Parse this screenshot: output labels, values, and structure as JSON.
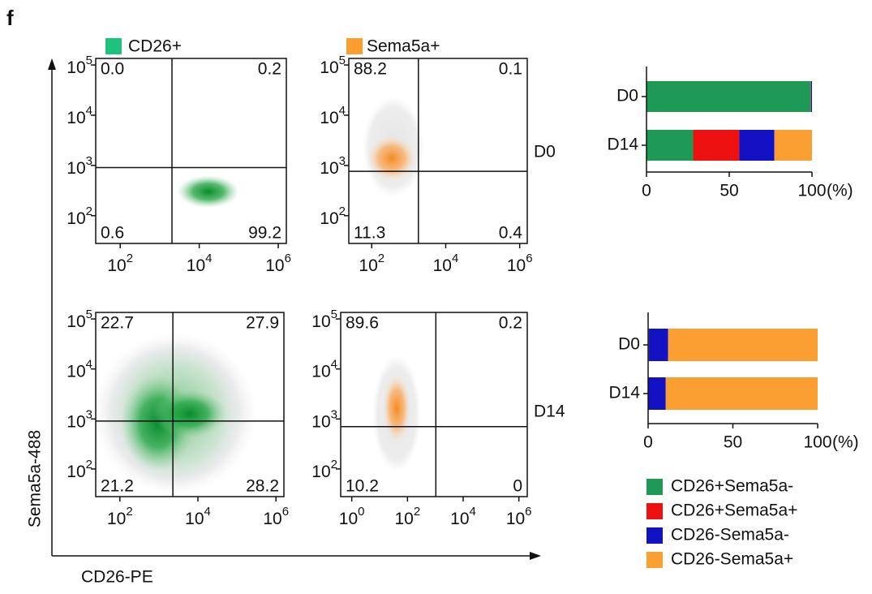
{
  "figure": {
    "panel_label": "f",
    "column_legend": [
      {
        "name": "CD26+",
        "color": "#1fc27a"
      },
      {
        "name": "Sema5a+",
        "color": "#ff9d2e"
      }
    ],
    "row_labels": [
      "D0",
      "D14"
    ],
    "y_axis_label": "Sema5a-488",
    "x_axis_label": "CD26-PE"
  },
  "chart_data": [
    {
      "type": "density",
      "log": true,
      "xlim": [
        24,
        1600000
      ],
      "ylim": [
        28,
        135000
      ],
      "xticks": [
        {
          "value": 100,
          "label": "10",
          "exponent": "2"
        },
        {
          "value": 10000,
          "label": "10",
          "exponent": "4"
        },
        {
          "value": 1000000,
          "label": "10",
          "exponent": "6"
        }
      ],
      "yticks": [
        {
          "value": 100,
          "label": "10",
          "exponent": "2"
        },
        {
          "value": 1000,
          "label": "10",
          "exponent": "3"
        },
        {
          "value": 10000,
          "label": "10",
          "exponent": "4"
        },
        {
          "value": 100000,
          "label": "10",
          "exponent": "5"
        }
      ],
      "values": [
        0,
        0.2,
        0.6,
        99.2
      ],
      "value_labels": [
        "0.0",
        "0.2",
        "0.6",
        "99.2"
      ],
      "color": "#0e9a3c"
    },
    {
      "type": "density",
      "log": true,
      "xlim": [
        24,
        1600000
      ],
      "ylim": [
        28,
        135000
      ],
      "xticks": [
        {
          "value": 100,
          "label": "10",
          "exponent": "2"
        },
        {
          "value": 10000,
          "label": "10",
          "exponent": "4"
        },
        {
          "value": 1000000,
          "label": "10",
          "exponent": "6"
        }
      ],
      "yticks": [
        {
          "value": 100,
          "label": "10",
          "exponent": "2"
        },
        {
          "value": 1000,
          "label": "10",
          "exponent": "3"
        },
        {
          "value": 10000,
          "label": "10",
          "exponent": "4"
        },
        {
          "value": 100000,
          "label": "10",
          "exponent": "5"
        }
      ],
      "values": [
        88.2,
        0.1,
        11.3,
        0.4
      ],
      "value_labels": [
        "88.2",
        "0.1",
        "11.3",
        "0.4"
      ],
      "color": "#f58a1f"
    },
    {
      "type": "density",
      "log": true,
      "xlim": [
        24,
        1600000
      ],
      "ylim": [
        28,
        135000
      ],
      "xticks": [
        {
          "value": 100,
          "label": "10",
          "exponent": "2"
        },
        {
          "value": 10000,
          "label": "10",
          "exponent": "4"
        },
        {
          "value": 1000000,
          "label": "10",
          "exponent": "6"
        }
      ],
      "yticks": [
        {
          "value": 100,
          "label": "10",
          "exponent": "2"
        },
        {
          "value": 1000,
          "label": "10",
          "exponent": "3"
        },
        {
          "value": 10000,
          "label": "10",
          "exponent": "4"
        },
        {
          "value": 100000,
          "label": "10",
          "exponent": "5"
        }
      ],
      "values": [
        22.7,
        27.9,
        21.2,
        28.2
      ],
      "value_labels": [
        "22.7",
        "27.9",
        "21.2",
        "28.2"
      ],
      "color": "#0e9a3c"
    },
    {
      "type": "density",
      "log": true,
      "xlim": [
        0.4,
        2000000
      ],
      "ylim": [
        28,
        135000
      ],
      "xticks": [
        {
          "value": 1,
          "label": "10",
          "exponent": "0"
        },
        {
          "value": 100,
          "label": "10",
          "exponent": "2"
        },
        {
          "value": 10000,
          "label": "10",
          "exponent": "4"
        },
        {
          "value": 1000000,
          "label": "10",
          "exponent": "6"
        }
      ],
      "yticks": [
        {
          "value": 100,
          "label": "10",
          "exponent": "2"
        },
        {
          "value": 1000,
          "label": "10",
          "exponent": "3"
        },
        {
          "value": 10000,
          "label": "10",
          "exponent": "4"
        },
        {
          "value": 100000,
          "label": "10",
          "exponent": "5"
        }
      ],
      "values": [
        89.6,
        0.2,
        10.2,
        0
      ],
      "value_labels": [
        "89.6",
        "0.2",
        "10.2",
        "0"
      ],
      "color": "#f58a1f"
    },
    {
      "type": "bar",
      "orientation": "horizontal",
      "stacked": true,
      "categories": [
        "D0",
        "D14"
      ],
      "series": [
        {
          "name": "CD26+Sema5a-",
          "color": "#1f9a55",
          "values": [
            99.2,
            28.2
          ]
        },
        {
          "name": "CD26+Sema5a+",
          "color": "#ee1111",
          "values": [
            0.2,
            27.9
          ]
        },
        {
          "name": "CD26-Sema5a-",
          "color": "#1212c4",
          "values": [
            0.6,
            21.2
          ]
        },
        {
          "name": "CD26-Sema5a+",
          "color": "#fb9f33",
          "values": [
            0,
            22.7
          ]
        }
      ],
      "xlim": [
        0,
        100
      ],
      "xticks": [
        0,
        50,
        100
      ],
      "unit": "(%)"
    },
    {
      "type": "bar",
      "orientation": "horizontal",
      "stacked": true,
      "categories": [
        "D0",
        "D14"
      ],
      "series": [
        {
          "color": "#1f9a55",
          "values": [
            0.4,
            0
          ]
        },
        {
          "color": "#ee1111",
          "values": [
            0.1,
            0.2
          ]
        },
        {
          "color": "#1212c4",
          "values": [
            11.3,
            10.2
          ]
        },
        {
          "color": "#fb9f33",
          "values": [
            88.2,
            89.6
          ]
        }
      ],
      "xlim": [
        0,
        100
      ],
      "xticks": [
        0,
        50,
        100
      ],
      "unit": "(%)"
    }
  ]
}
